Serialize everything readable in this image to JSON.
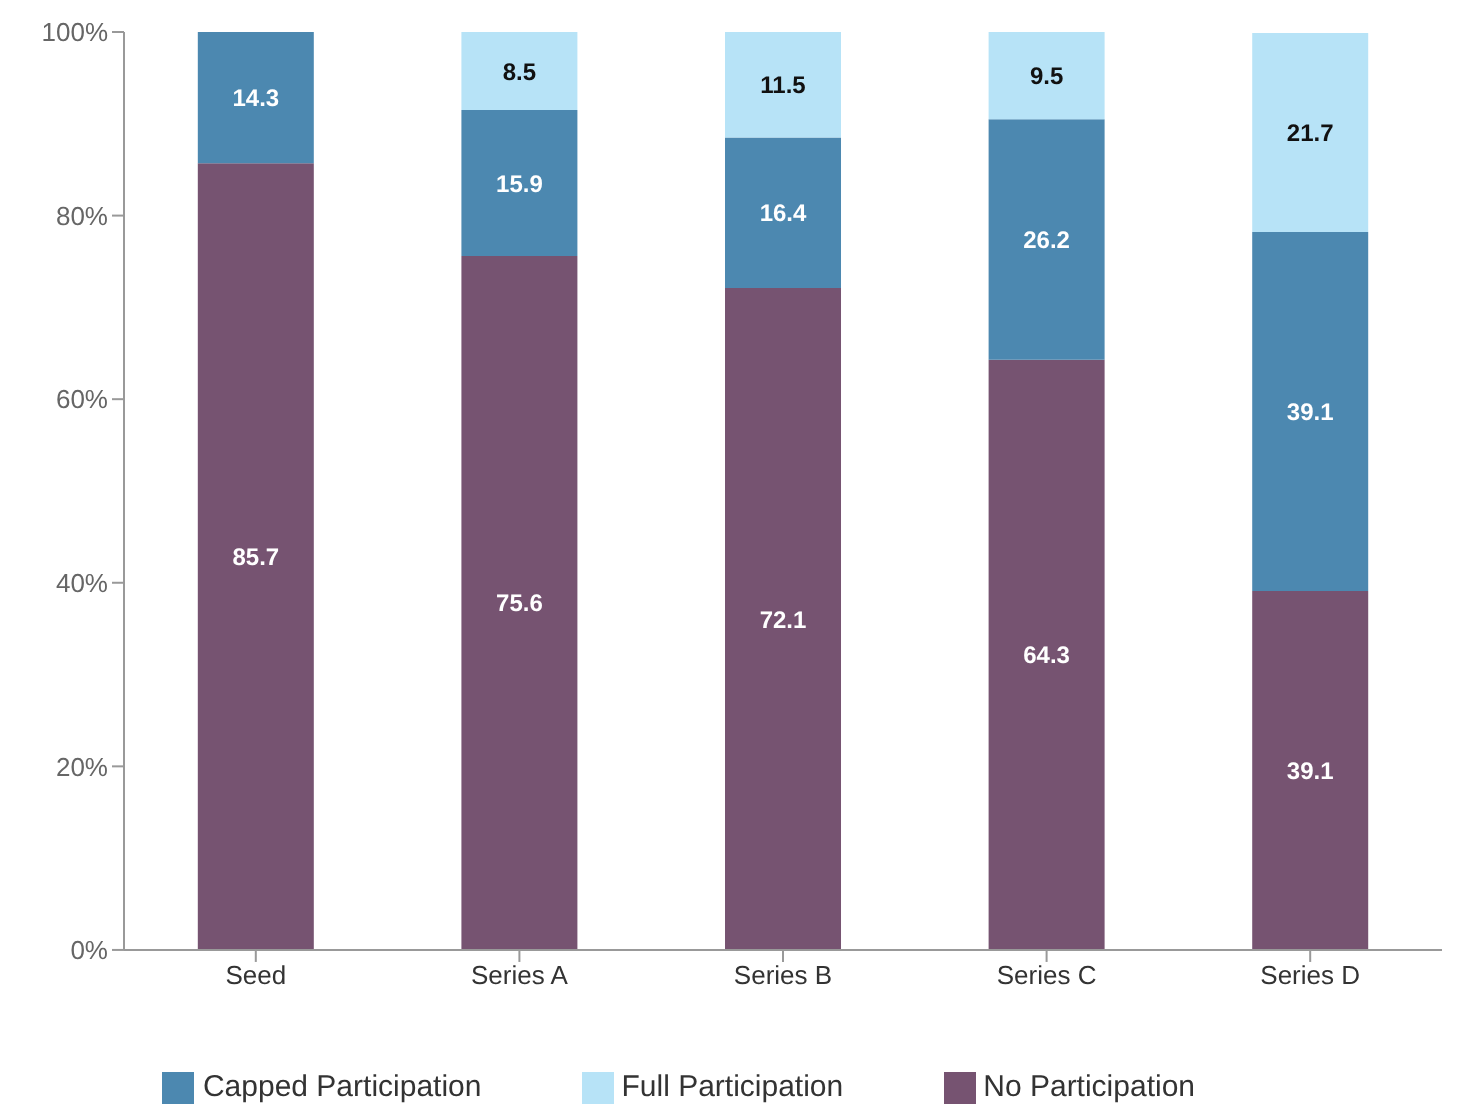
{
  "chart_data": {
    "type": "bar",
    "stacked": true,
    "categories": [
      "Seed",
      "Series A",
      "Series B",
      "Series C",
      "Series D"
    ],
    "series": [
      {
        "name": "No Participation",
        "color": "#765371",
        "values": [
          85.7,
          75.6,
          72.1,
          64.3,
          39.1
        ]
      },
      {
        "name": "Capped Participation",
        "color": "#4c88b0",
        "values": [
          14.3,
          15.9,
          16.4,
          26.2,
          39.1
        ]
      },
      {
        "name": "Full Participation",
        "color": "#b7e3f7",
        "values": [
          null,
          8.5,
          11.5,
          9.5,
          21.7
        ]
      }
    ],
    "ylim": [
      0,
      100
    ],
    "yticks": [
      {
        "value": 0,
        "label": "0%"
      },
      {
        "value": 20,
        "label": "20%"
      },
      {
        "value": 40,
        "label": "40%"
      },
      {
        "value": 60,
        "label": "60%"
      },
      {
        "value": 80,
        "label": "80%"
      },
      {
        "value": 100,
        "label": "100%"
      }
    ],
    "data_labels": true,
    "grid": false,
    "legend": "bottom"
  }
}
